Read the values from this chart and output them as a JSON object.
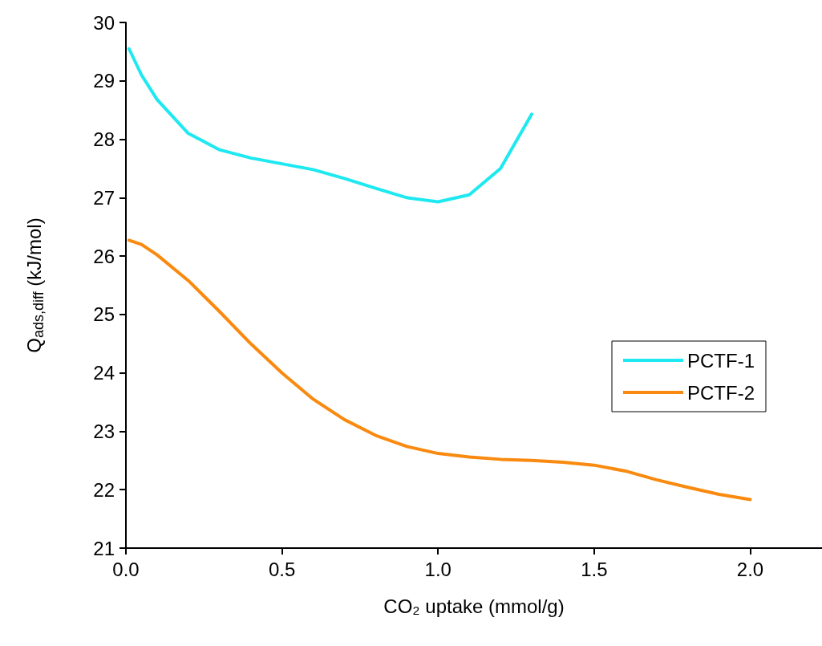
{
  "chart_data": {
    "type": "line",
    "xlabel": "CO₂ uptake (mmol/g)",
    "ylabel": "Q$_{ads,diff}$ (kJ/mol)",
    "xlim": [
      0,
      2.23
    ],
    "xticks": [
      {
        "value": 0,
        "label": "0.0"
      },
      0.5,
      {
        "value": 1,
        "label": "1.0"
      },
      1.5,
      {
        "value": 2,
        "label": "2.0"
      }
    ],
    "ylim": [
      21,
      30
    ],
    "yticks": [
      21,
      22,
      23,
      24,
      25,
      26,
      27,
      28,
      29,
      30
    ],
    "legend": "right",
    "grid": false,
    "marker": "none",
    "line_style": "solid",
    "series": [
      {
        "name": "PCTF-1",
        "color": "#1ee8f0",
        "x": [
          0.01,
          0.05,
          0.1,
          0.2,
          0.3,
          0.4,
          0.5,
          0.6,
          0.7,
          0.8,
          0.9,
          1.0,
          1.1,
          1.2,
          1.3
        ],
        "values": [
          29.55,
          29.1,
          28.68,
          28.1,
          27.82,
          27.68,
          27.58,
          27.48,
          27.33,
          27.16,
          27.0,
          26.93,
          27.05,
          27.5,
          28.43
        ]
      },
      {
        "name": "PCTF-2",
        "color": "#f98a0f",
        "x": [
          0.01,
          0.05,
          0.1,
          0.2,
          0.3,
          0.4,
          0.5,
          0.6,
          0.7,
          0.8,
          0.9,
          1.0,
          1.1,
          1.2,
          1.3,
          1.4,
          1.5,
          1.6,
          1.7,
          1.8,
          1.9,
          2.0
        ],
        "values": [
          26.27,
          26.2,
          26.02,
          25.58,
          25.05,
          24.5,
          24.0,
          23.55,
          23.2,
          22.93,
          22.74,
          22.62,
          22.56,
          22.52,
          22.5,
          22.47,
          22.42,
          22.32,
          22.17,
          22.04,
          21.92,
          21.83
        ]
      }
    ]
  }
}
